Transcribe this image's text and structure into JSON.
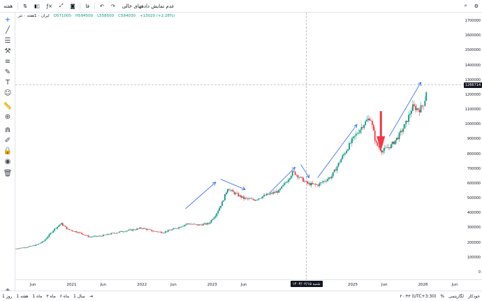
{
  "toolbar": {
    "interval": "هفته",
    "indicators_label": "فا",
    "empty_data_label": "عدم نمایش دادههای خالی"
  },
  "legend": {
    "symbol": "ایران ۰ 1هفته ۰ تتر",
    "open": "O571000",
    "high": "H594500",
    "low": "L558500",
    "close": "C584030",
    "change": "+13020 (+2.28%)"
  },
  "price_axis": {
    "ticks": [
      "1700000",
      "1600000",
      "1500000",
      "1400000",
      "1300000",
      "1200000",
      "1100000",
      "1000000",
      "900000",
      "800000",
      "700000",
      "600000",
      "500000",
      "400000",
      "300000",
      "200000",
      "100000",
      "0"
    ],
    "last_price": "1266714"
  },
  "time_axis": {
    "ticks": [
      "Jun",
      "2021",
      "Jun",
      "2022",
      "Jun",
      "2023",
      "Jun",
      "Jun",
      "2025",
      "Jun",
      "2026",
      "Jun"
    ],
    "crosshair_label": "شنبه ۱۴۰۳/۰۲/۱۵"
  },
  "bottom": {
    "ranges": [
      "روز 1",
      "هفته 1",
      "ماه 1",
      "ماه ۳",
      "ماه ۶",
      "سال 1"
    ],
    "timezone": "۲۰:۴۳ (UTC+3:30)",
    "percent": "%",
    "log": "لگاریتمی",
    "auto": "خودکار"
  },
  "colors": {
    "up": "#089981",
    "down": "#f23645",
    "arrow": "#2962ff",
    "red_arrow": "#f23645"
  },
  "chart_data": {
    "type": "candlestick",
    "interval": "1 week",
    "y_range": [
      0,
      1700000
    ],
    "x_range_years": [
      2020.2,
      2026.6
    ],
    "log_scale": false,
    "path": [
      [
        2020.2,
        160000
      ],
      [
        2020.35,
        170000
      ],
      [
        2020.5,
        185000
      ],
      [
        2020.6,
        210000
      ],
      [
        2020.75,
        290000
      ],
      [
        2020.85,
        330000
      ],
      [
        2020.95,
        290000
      ],
      [
        2021.1,
        270000
      ],
      [
        2021.25,
        240000
      ],
      [
        2021.4,
        245000
      ],
      [
        2021.55,
        260000
      ],
      [
        2021.75,
        280000
      ],
      [
        2021.9,
        290000
      ],
      [
        2022.0,
        300000
      ],
      [
        2022.15,
        280000
      ],
      [
        2022.3,
        270000
      ],
      [
        2022.5,
        300000
      ],
      [
        2022.65,
        330000
      ],
      [
        2022.8,
        320000
      ],
      [
        2022.95,
        330000
      ],
      [
        2023.05,
        390000
      ],
      [
        2023.15,
        480000
      ],
      [
        2023.22,
        570000
      ],
      [
        2023.3,
        540000
      ],
      [
        2023.45,
        500000
      ],
      [
        2023.6,
        490000
      ],
      [
        2023.75,
        520000
      ],
      [
        2023.95,
        550000
      ],
      [
        2024.05,
        610000
      ],
      [
        2024.15,
        680000
      ],
      [
        2024.25,
        640000
      ],
      [
        2024.35,
        600000
      ],
      [
        2024.5,
        590000
      ],
      [
        2024.6,
        620000
      ],
      [
        2024.7,
        650000
      ],
      [
        2024.85,
        780000
      ],
      [
        2025.0,
        900000
      ],
      [
        2025.15,
        1000000
      ],
      [
        2025.25,
        1050000
      ],
      [
        2025.33,
        870000
      ],
      [
        2025.42,
        820000
      ],
      [
        2025.55,
        860000
      ],
      [
        2025.65,
        920000
      ],
      [
        2025.75,
        1000000
      ],
      [
        2025.85,
        1120000
      ],
      [
        2025.95,
        1100000
      ],
      [
        2026.02,
        1150000
      ],
      [
        2026.06,
        1266714
      ]
    ],
    "crosshair_price": 1266714
  }
}
